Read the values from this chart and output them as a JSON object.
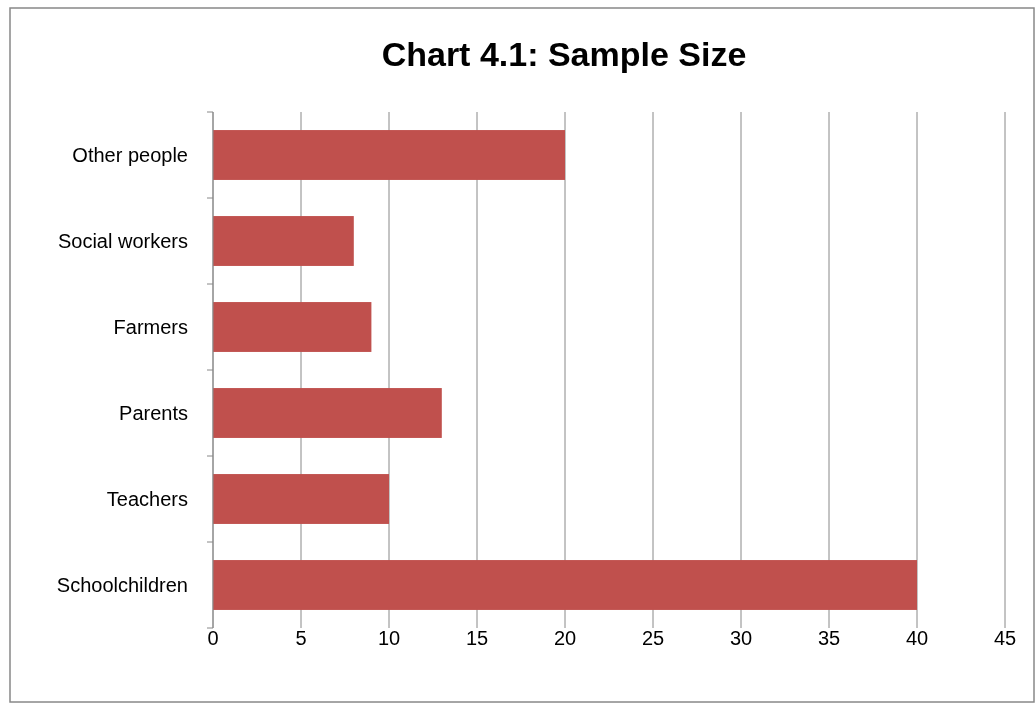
{
  "chart_data": {
    "type": "bar",
    "orientation": "horizontal",
    "title": "Chart 4.1: Sample Size",
    "categories": [
      "Other people",
      "Social workers",
      "Farmers",
      "Parents",
      "Teachers",
      "Schoolchildren"
    ],
    "values": [
      20,
      8,
      9,
      13,
      10,
      40
    ],
    "color": "#c0504d",
    "xlim": [
      0,
      45
    ],
    "xticks": [
      0,
      5,
      10,
      15,
      20,
      25,
      30,
      35,
      40,
      45
    ],
    "grid": "x"
  }
}
